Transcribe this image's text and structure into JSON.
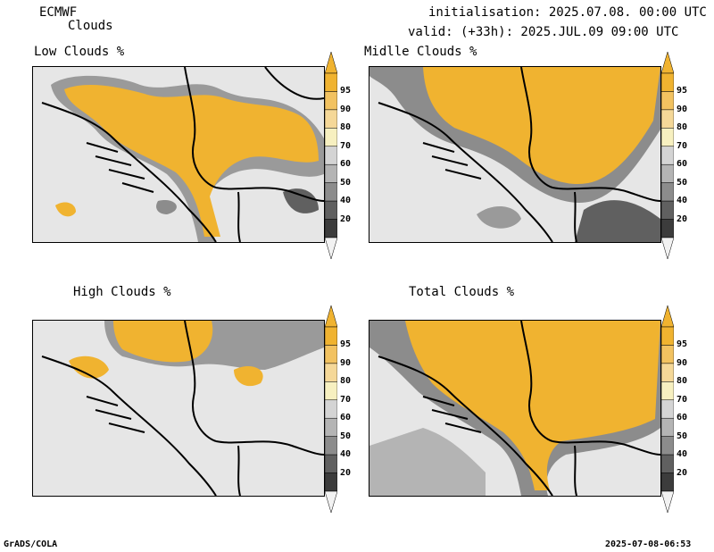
{
  "header": {
    "model": "ECMWF",
    "field": "Clouds",
    "init": "initialisation: 2025.07.08. 00:00 UTC",
    "valid": "valid: (+33h): 2025.JUL.09 09:00 UTC"
  },
  "panels": [
    {
      "title": "Low Clouds %"
    },
    {
      "title": "Midlle Clouds %"
    },
    {
      "title": "High Clouds %"
    },
    {
      "title": "Total Clouds %"
    }
  ],
  "colorbar": {
    "levels": [
      "95",
      "90",
      "80",
      "70",
      "60",
      "50",
      "40",
      "20"
    ],
    "colors": [
      "#f0b330",
      "#f2c260",
      "#f5d898",
      "#f7f0c0",
      "#d4d4d4",
      "#b4b4b4",
      "#8c8c8c",
      "#606060",
      "#3c3c3c"
    ],
    "tip_colors": {
      "top": "#f0b330",
      "bottom": "#f2f2f2"
    }
  },
  "footer": {
    "left": "GrADS/COLA",
    "right": "2025-07-08-06:53"
  },
  "colors": {
    "background_map": "#e6e6e6",
    "cloud_fill": "#f0b330",
    "border_line": "#000000"
  }
}
